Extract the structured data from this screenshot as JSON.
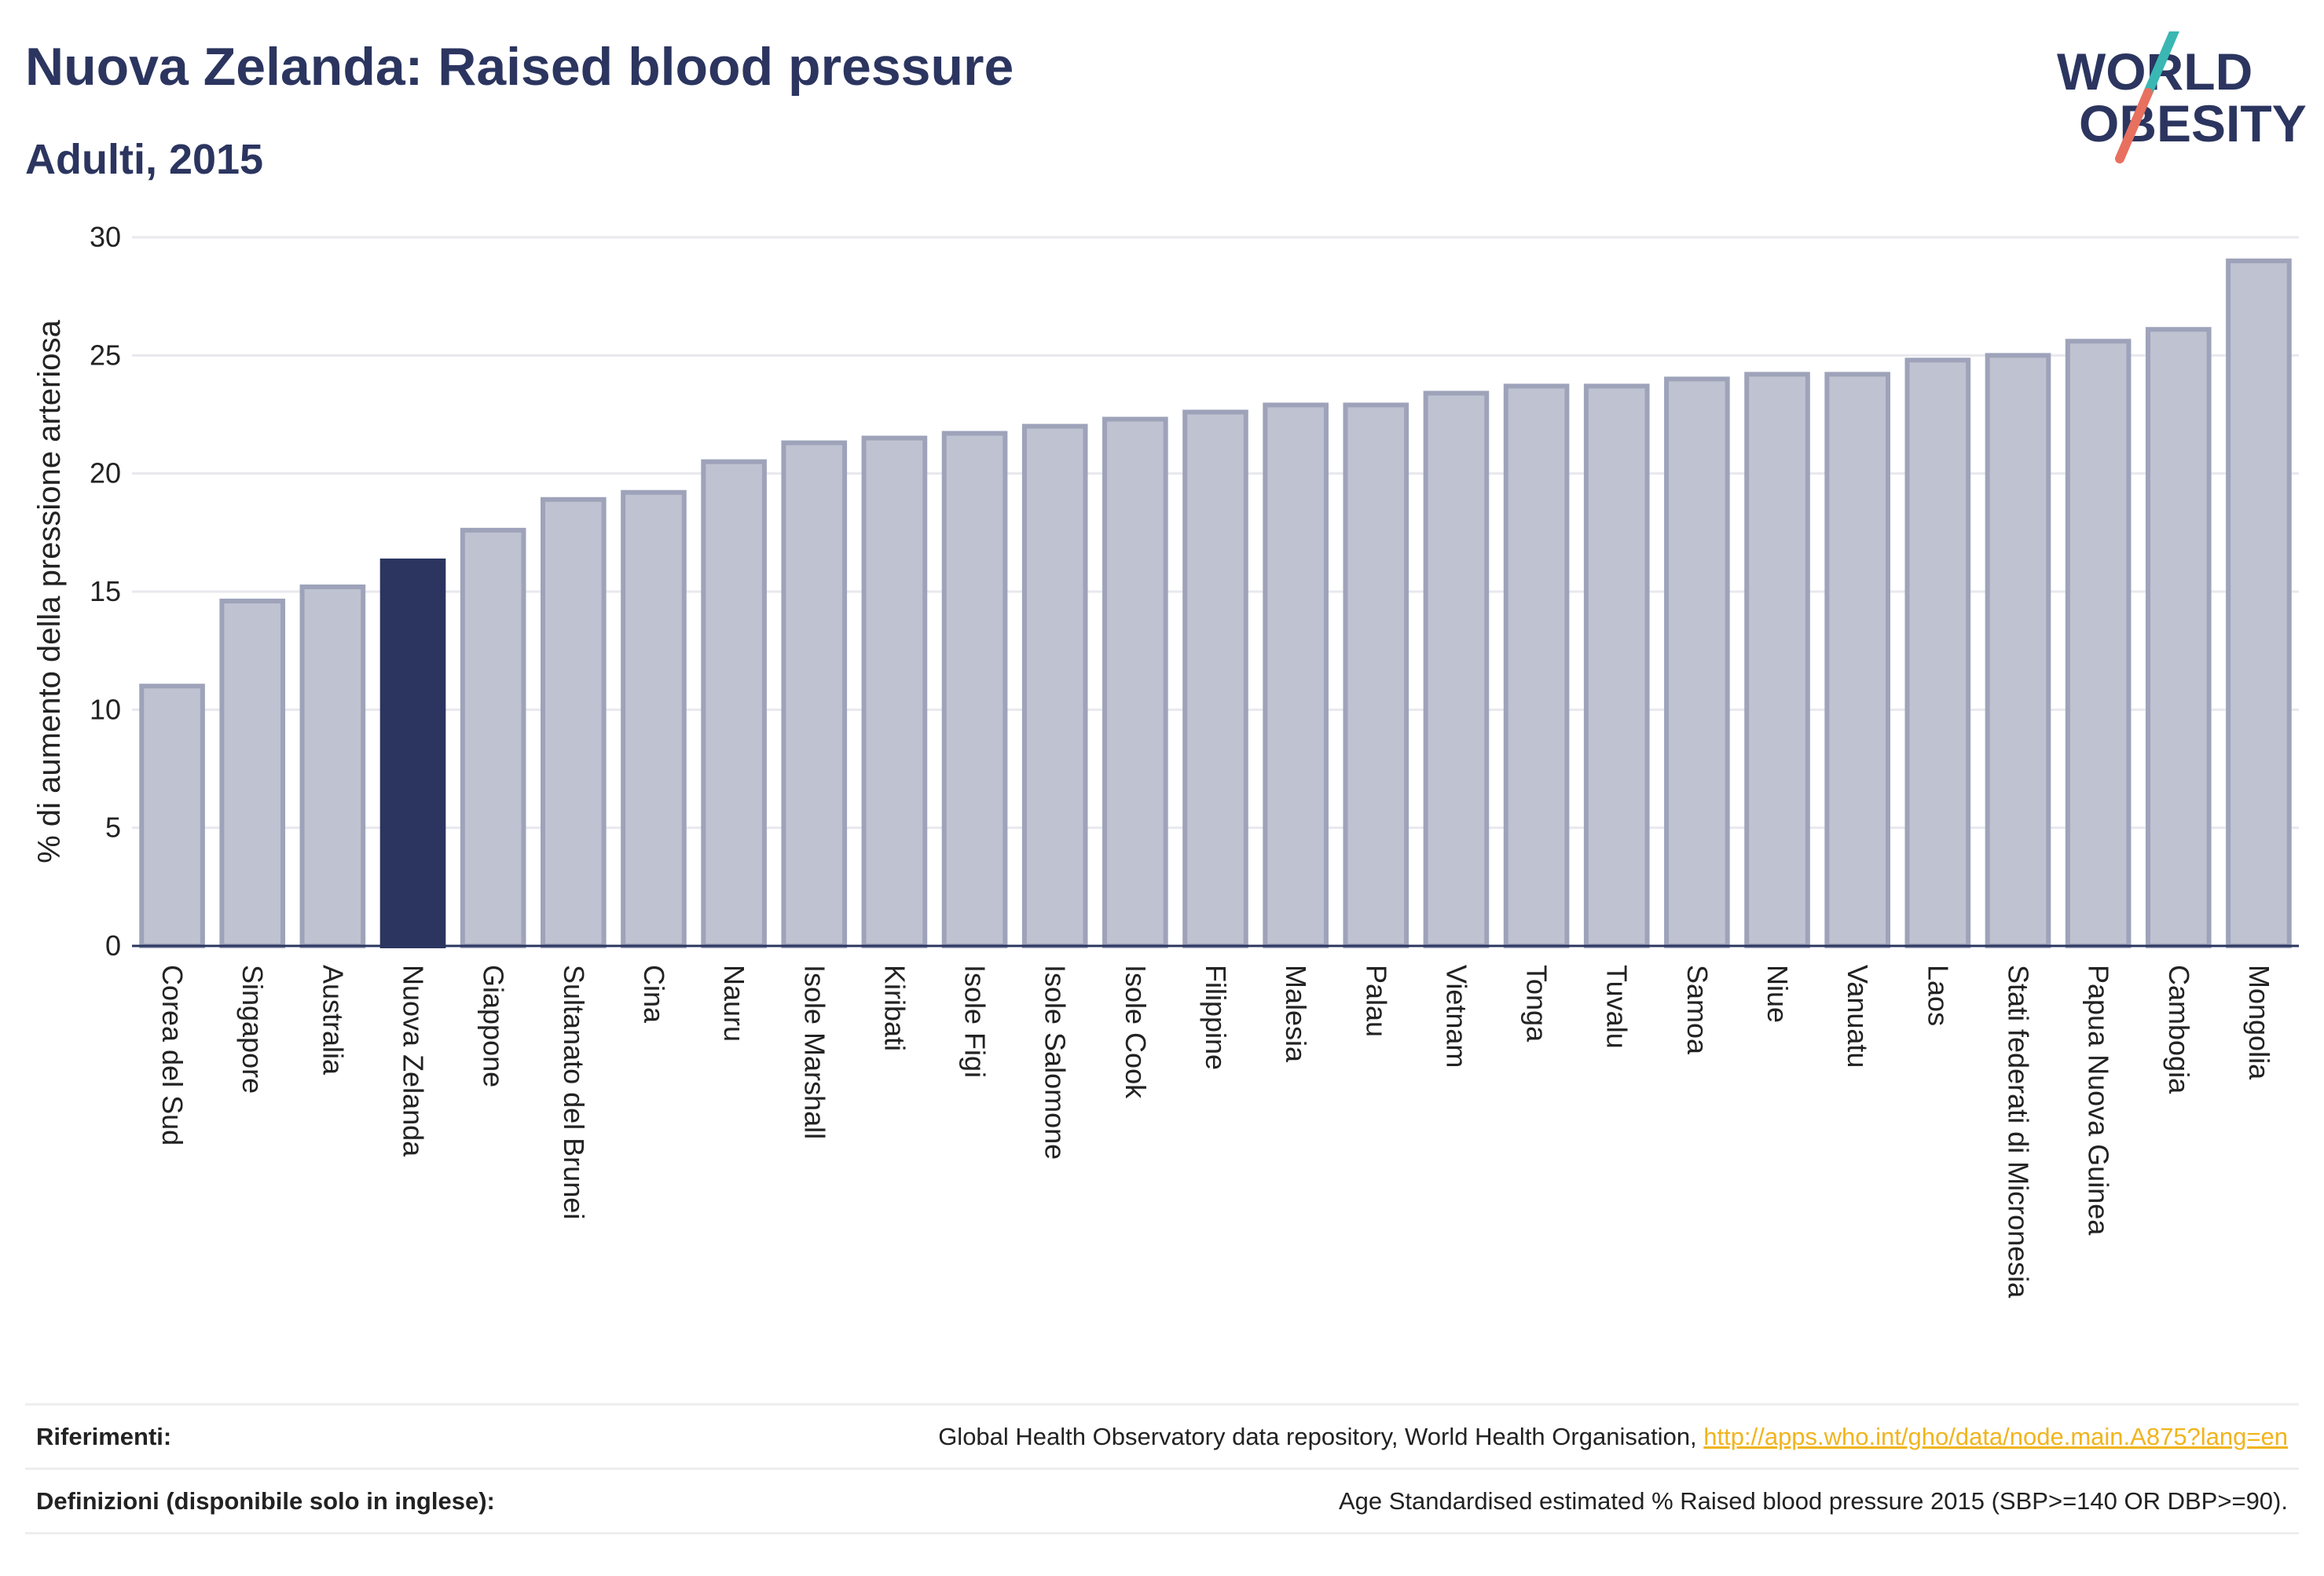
{
  "header": {
    "title": "Nuova Zelanda: Raised blood pressure",
    "subtitle": "Adulti, 2015"
  },
  "logo": {
    "line1": "WORLD",
    "line2": "OBESITY",
    "colors": {
      "text": "#2b355f",
      "slash_top": "#3ab7b3",
      "slash_bottom": "#e8705f"
    }
  },
  "chart_data": {
    "type": "bar",
    "title": "",
    "xlabel": "",
    "ylabel": "% di aumento della pressione arteriosa",
    "ylim": [
      0,
      30
    ],
    "yticks": [
      0,
      5,
      10,
      15,
      20,
      25,
      30
    ],
    "grid": true,
    "highlight_category": "Nuova Zelanda",
    "colors": {
      "bar": "#bfc2d0",
      "bar_edge": "#9ea3ba",
      "highlight": "#2b355f",
      "grid": "#e8e8ee",
      "axis": "#2b355f"
    },
    "categories": [
      "Corea del Sud",
      "Singapore",
      "Australia",
      "Nuova Zelanda",
      "Giappone",
      "Sultanato del Brunei",
      "Cina",
      "Nauru",
      "Isole Marshall",
      "Kiribati",
      "Isole Figi",
      "Isole Salomone",
      "Isole Cook",
      "Filippine",
      "Malesia",
      "Palau",
      "Vietnam",
      "Tonga",
      "Tuvalu",
      "Samoa",
      "Niue",
      "Vanuatu",
      "Laos",
      "Stati federati di Micronesia",
      "Papua Nuova Guinea",
      "Cambogia",
      "Mongolia"
    ],
    "values": [
      11.0,
      14.6,
      15.2,
      16.3,
      17.6,
      18.9,
      19.2,
      20.5,
      21.3,
      21.5,
      21.7,
      22.0,
      22.3,
      22.6,
      22.9,
      22.9,
      23.4,
      23.7,
      23.7,
      24.0,
      24.2,
      24.2,
      24.8,
      25.0,
      25.6,
      26.1,
      29.0
    ]
  },
  "footer": {
    "references_label": "Riferimenti:",
    "references_text": "Global Health Observatory data repository, World Health Organisation, ",
    "references_link": "http://apps.who.int/gho/data/node.main.A875?lang=en",
    "definitions_label": "Definizioni (disponibile solo in inglese):",
    "definitions_text": "Age Standardised estimated % Raised blood pressure 2015 (SBP>=140 OR DBP>=90)."
  }
}
